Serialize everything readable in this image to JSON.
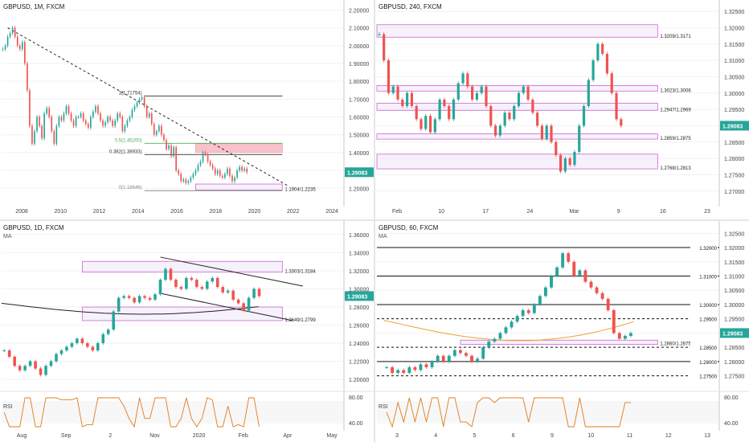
{
  "chart_data": [
    {
      "type": "candlestick",
      "title": "GBPUSD, 1M, FXCM",
      "x_ticks": [
        "2008",
        "2010",
        "2012",
        "2014",
        "2016",
        "2018",
        "2020",
        "2022",
        "2024"
      ],
      "y_ticks": [
        "2.20000",
        "2.10000",
        "2.00000",
        "1.90000",
        "1.80000",
        "1.70000",
        "1.60000",
        "1.50000",
        "1.40000",
        "1.30000",
        "1.20000"
      ],
      "ylim": [
        1.12,
        2.22
      ],
      "price_badge": "1.29083",
      "zones": [
        {
          "label": "",
          "color": "#f3a6b4",
          "y1": 1.4,
          "y2": 1.45
        },
        {
          "label": "1.1904/1.2235",
          "color": "#cc66cc",
          "y1": 1.19,
          "y2": 1.2235
        }
      ],
      "fib_levels": [
        {
          "label": "1(1.71754)",
          "value": 1.7175,
          "color": "#333333"
        },
        {
          "label": "0.5(1.45200)",
          "value": 1.452,
          "color": "#4caf50"
        },
        {
          "label": "0.382(1.38933)",
          "value": 1.3893,
          "color": "#333333"
        },
        {
          "label": "0(1.18646)",
          "value": 1.1865,
          "color": "#888888"
        }
      ],
      "closes": [
        1.98,
        2.0,
        2.05,
        2.07,
        2.1,
        2.05,
        2.0,
        1.98,
        2.02,
        1.9,
        1.75,
        1.55,
        1.45,
        1.52,
        1.6,
        1.55,
        1.48,
        1.62,
        1.65,
        1.6,
        1.52,
        1.45,
        1.55,
        1.6,
        1.58,
        1.62,
        1.66,
        1.62,
        1.58,
        1.55,
        1.6,
        1.6,
        1.62,
        1.58,
        1.56,
        1.54,
        1.6,
        1.63,
        1.66,
        1.62,
        1.58,
        1.55,
        1.57,
        1.6,
        1.58,
        1.55,
        1.58,
        1.62,
        1.6,
        1.52,
        1.55,
        1.58,
        1.6,
        1.64,
        1.66,
        1.68,
        1.7,
        1.71,
        1.66,
        1.6,
        1.62,
        1.56,
        1.5,
        1.52,
        1.55,
        1.5,
        1.47,
        1.42,
        1.44,
        1.38,
        1.43,
        1.3,
        1.28,
        1.24,
        1.25,
        1.23,
        1.24,
        1.26,
        1.28,
        1.3,
        1.33,
        1.35,
        1.4,
        1.39,
        1.35,
        1.33,
        1.31,
        1.28,
        1.3,
        1.27,
        1.26,
        1.28,
        1.31,
        1.27,
        1.24,
        1.26,
        1.3,
        1.32,
        1.3,
        1.31,
        1.29
      ]
    },
    {
      "type": "candlestick",
      "title": "GBPUSD, 240, FXCM",
      "x_ticks": [
        "Feb",
        "10",
        "17",
        "24",
        "Mar",
        "9",
        "16",
        "23"
      ],
      "y_ticks": [
        "1.32500",
        "1.32000",
        "1.31500",
        "1.31000",
        "1.30500",
        "1.30000",
        "1.29500",
        "1.29000",
        "1.28500",
        "1.28000",
        "1.27500",
        "1.27000"
      ],
      "ylim": [
        1.2665,
        1.3265
      ],
      "price_badge": "1.29083",
      "zones": [
        {
          "label": "1.3209/1.3171",
          "y1": 1.3171,
          "y2": 1.3209
        },
        {
          "label": "1.3023/1.3006",
          "y1": 1.3006,
          "y2": 1.3023
        },
        {
          "label": "1.2947/1.2969",
          "y1": 1.2947,
          "y2": 1.2969
        },
        {
          "label": "1.2859/1.2875",
          "y1": 1.2859,
          "y2": 1.2875
        },
        {
          "label": "1.2768/1.2813",
          "y1": 1.2768,
          "y2": 1.2813
        }
      ],
      "closes": [
        1.318,
        1.31,
        1.3,
        1.302,
        1.298,
        1.296,
        1.3,
        1.296,
        1.292,
        1.289,
        1.293,
        1.288,
        1.292,
        1.298,
        1.296,
        1.292,
        1.298,
        1.303,
        1.306,
        1.302,
        1.298,
        1.3,
        1.302,
        1.296,
        1.29,
        1.287,
        1.29,
        1.294,
        1.292,
        1.296,
        1.3,
        1.302,
        1.298,
        1.294,
        1.29,
        1.286,
        1.29,
        1.285,
        1.281,
        1.276,
        1.28,
        1.278,
        1.282,
        1.29,
        1.296,
        1.304,
        1.31,
        1.315,
        1.312,
        1.306,
        1.3,
        1.292,
        1.29
      ]
    },
    {
      "type": "candlestick",
      "title": "GBPUSD, 1D, FXCM",
      "indicator_label": "MA",
      "x_ticks": [
        "Aug",
        "Sep",
        "2",
        "Nov",
        "2020",
        "Feb",
        "Apr",
        "May"
      ],
      "y_ticks": [
        "1.36000",
        "1.34000",
        "1.32000",
        "1.30000",
        "1.28000",
        "1.26000",
        "1.24000",
        "1.22000",
        "1.20000"
      ],
      "ylim": [
        1.193,
        1.366
      ],
      "price_badge": "1.29083",
      "zones": [
        {
          "label": "1.3303/1.3184",
          "y1": 1.3184,
          "y2": 1.3303
        },
        {
          "label": "1.2649/1.2799",
          "y1": 1.2649,
          "y2": 1.2799
        }
      ],
      "closes": [
        1.232,
        1.225,
        1.215,
        1.21,
        1.215,
        1.22,
        1.212,
        1.205,
        1.215,
        1.22,
        1.228,
        1.232,
        1.236,
        1.24,
        1.245,
        1.24,
        1.236,
        1.232,
        1.24,
        1.25,
        1.255,
        1.275,
        1.29,
        1.292,
        1.29,
        1.285,
        1.292,
        1.29,
        1.288,
        1.294,
        1.31,
        1.322,
        1.31,
        1.302,
        1.3,
        1.312,
        1.31,
        1.302,
        1.3,
        1.308,
        1.312,
        1.302,
        1.296,
        1.298,
        1.288,
        1.284,
        1.276,
        1.29,
        1.3,
        1.292
      ],
      "rsi": {
        "label": "RSI",
        "y_ticks": [
          "80.00",
          "40.00"
        ]
      }
    },
    {
      "type": "candlestick",
      "title": "GBPUSD, 60, FXCM",
      "indicator_label": "MA",
      "x_ticks": [
        "3",
        "4",
        "5",
        "6",
        "9",
        "10",
        "11",
        "12",
        "13"
      ],
      "y_ticks": [
        "1.32500",
        "1.32000",
        "1.31500",
        "1.31000",
        "1.30500",
        "1.30000",
        "1.29500",
        "1.29000",
        "1.28500",
        "1.28000",
        "1.27500"
      ],
      "ylim": [
        1.2715,
        1.3265
      ],
      "price_badge": "1.29083",
      "levels": [
        {
          "label": "1.32000",
          "value": 1.32,
          "style": "solid"
        },
        {
          "label": "1.31000",
          "value": 1.31,
          "style": "solid"
        },
        {
          "label": "1.30000",
          "value": 1.3,
          "style": "solid"
        },
        {
          "label": "1.29500",
          "value": 1.295,
          "style": "dashed"
        },
        {
          "label": "1.28500",
          "value": 1.285,
          "style": "dashed"
        },
        {
          "label": "1.28000",
          "value": 1.28,
          "style": "solid"
        },
        {
          "label": "1.27500",
          "value": 1.275,
          "style": "dashed"
        }
      ],
      "zones": [
        {
          "label": "1.2860/1.2875",
          "y1": 1.286,
          "y2": 1.2875
        }
      ],
      "closes": [
        1.278,
        1.276,
        1.277,
        1.276,
        1.278,
        1.277,
        1.279,
        1.278,
        1.28,
        1.282,
        1.28,
        1.282,
        1.284,
        1.283,
        1.282,
        1.28,
        1.281,
        1.285,
        1.287,
        1.288,
        1.29,
        1.292,
        1.294,
        1.296,
        1.298,
        1.297,
        1.3,
        1.303,
        1.306,
        1.31,
        1.313,
        1.318,
        1.315,
        1.31,
        1.312,
        1.308,
        1.306,
        1.304,
        1.302,
        1.298,
        1.29,
        1.288,
        1.289,
        1.29
      ],
      "rsi": {
        "label": "RSI",
        "y_ticks": [
          "80.00",
          "40.00"
        ]
      }
    }
  ]
}
